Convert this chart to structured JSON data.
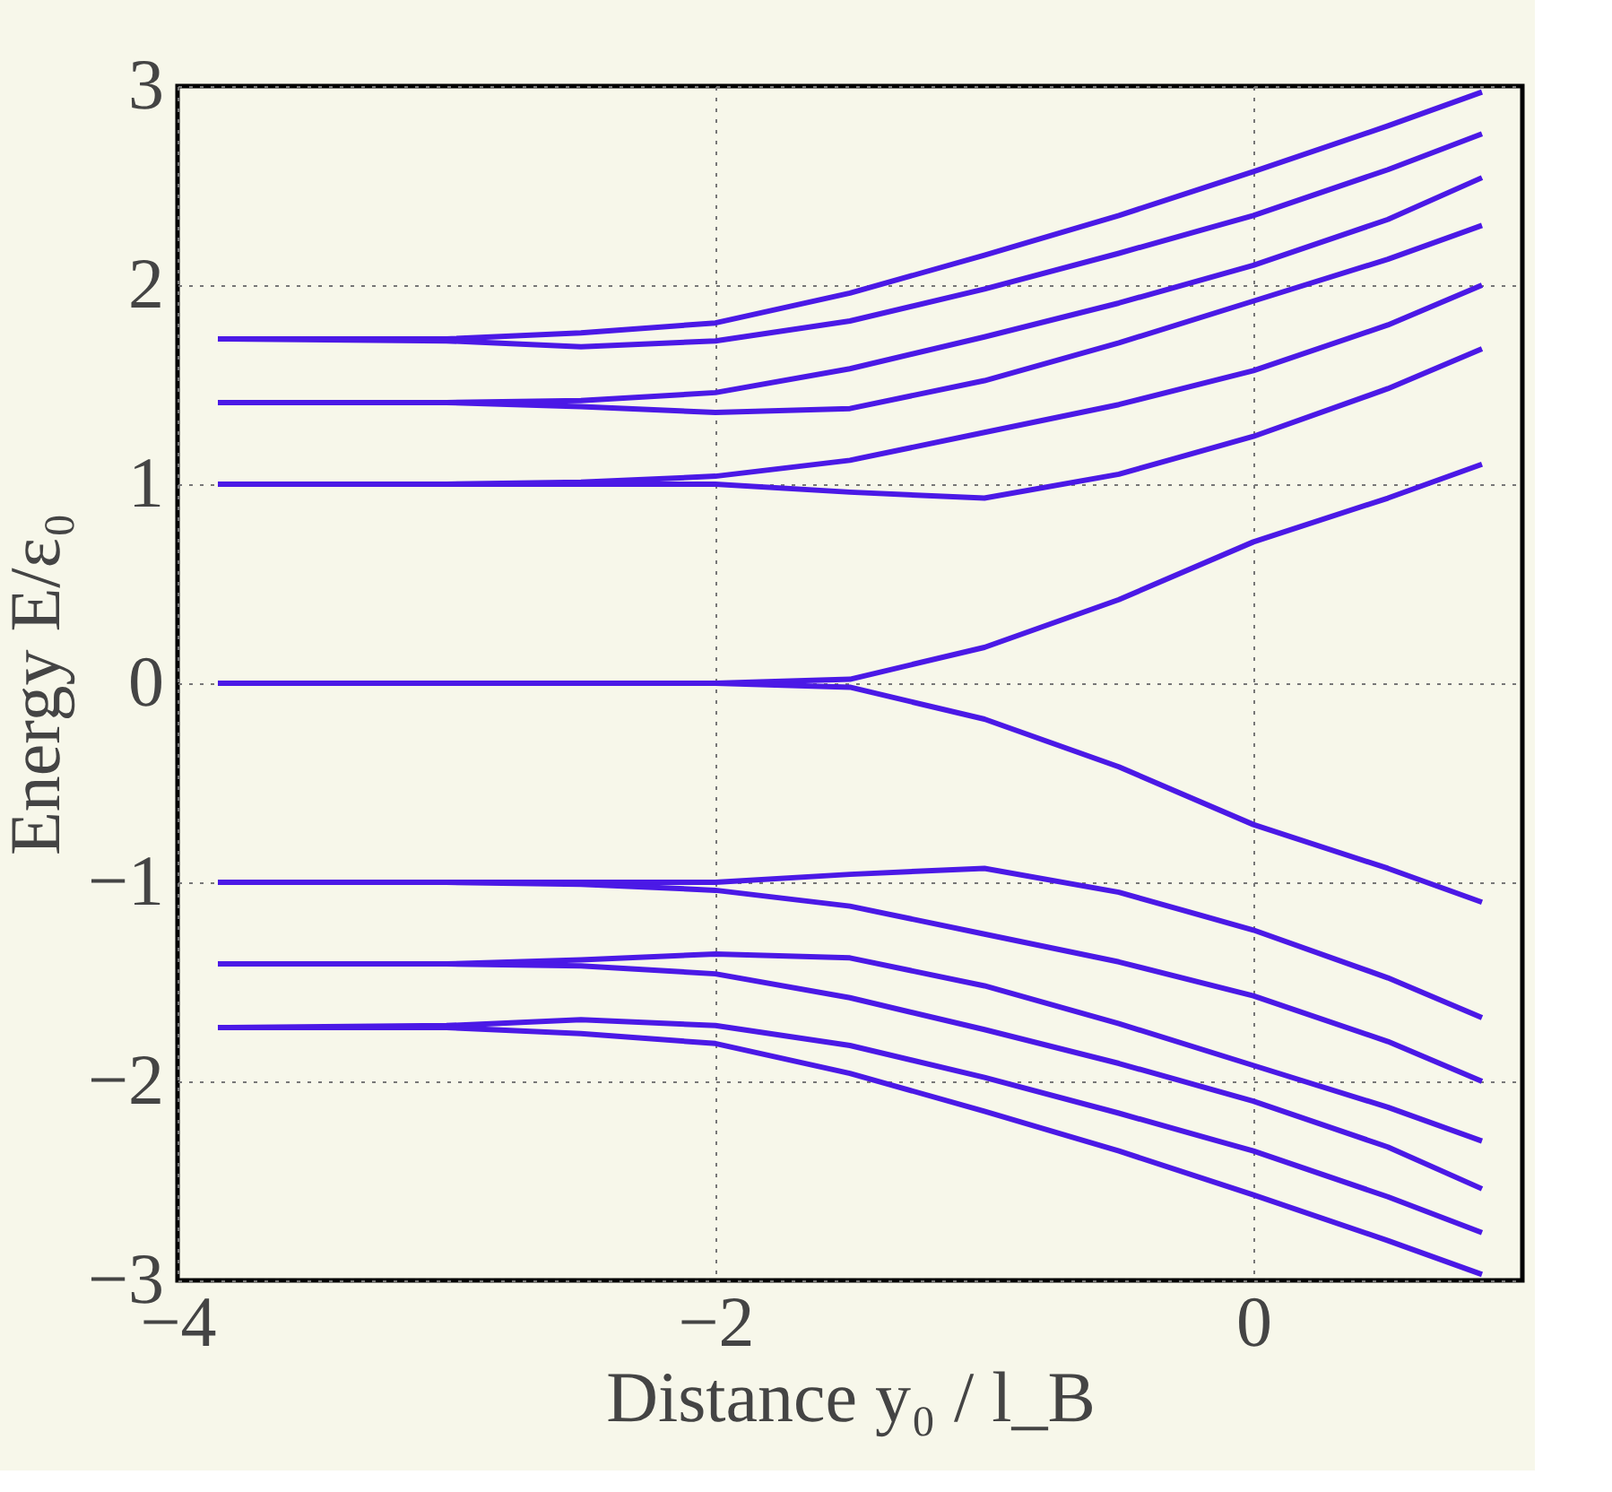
{
  "chart_data": {
    "type": "line",
    "xlabel": "Distance  y₀ / l_B",
    "ylabel": "Energy  E/ε₀",
    "xlim": [
      -4,
      1
    ],
    "ylim": [
      -3,
      3
    ],
    "xticks": [
      -4,
      -2,
      0
    ],
    "yticks": [
      -3,
      -2,
      -1,
      0,
      1,
      2,
      3
    ],
    "grid": true,
    "line_style": "solid",
    "marker": "none",
    "x": [
      -3.85,
      -3.0,
      -2.5,
      -2.0,
      -1.5,
      -1.0,
      -0.5,
      0,
      0.5,
      0.85
    ],
    "series": [
      {
        "color": "#4b19e6",
        "values": [
          1.73,
          1.73,
          1.76,
          1.81,
          1.96,
          2.15,
          2.35,
          2.57,
          2.8,
          2.97
        ]
      },
      {
        "color": "#4b19e6",
        "values": [
          1.73,
          1.72,
          1.69,
          1.72,
          1.82,
          1.98,
          2.16,
          2.35,
          2.58,
          2.76
        ]
      },
      {
        "color": "#4b19e6",
        "values": [
          1.41,
          1.41,
          1.42,
          1.46,
          1.58,
          1.74,
          1.91,
          2.1,
          2.33,
          2.54
        ]
      },
      {
        "color": "#4b19e6",
        "values": [
          1.41,
          1.41,
          1.39,
          1.36,
          1.38,
          1.52,
          1.71,
          1.92,
          2.13,
          2.3
        ]
      },
      {
        "color": "#4b19e6",
        "values": [
          1.0,
          1.0,
          1.01,
          1.04,
          1.12,
          1.26,
          1.4,
          1.57,
          1.8,
          2.0
        ]
      },
      {
        "color": "#4b19e6",
        "values": [
          1.0,
          1.0,
          1.0,
          1.0,
          0.96,
          0.93,
          1.05,
          1.24,
          1.48,
          1.68
        ]
      },
      {
        "color": "#4b19e6",
        "values": [
          0,
          0,
          0,
          0,
          0.02,
          0.18,
          0.42,
          0.71,
          0.93,
          1.1
        ]
      },
      {
        "color": "#4b19e6",
        "values": [
          0,
          0,
          0,
          0,
          -0.02,
          -0.18,
          -0.42,
          -0.71,
          -0.93,
          -1.1
        ]
      },
      {
        "color": "#4b19e6",
        "values": [
          -1.0,
          -1.0,
          -1.0,
          -1.0,
          -0.96,
          -0.93,
          -1.05,
          -1.24,
          -1.48,
          -1.68
        ]
      },
      {
        "color": "#4b19e6",
        "values": [
          -1.0,
          -1.0,
          -1.01,
          -1.04,
          -1.12,
          -1.26,
          -1.4,
          -1.57,
          -1.8,
          -2.0
        ]
      },
      {
        "color": "#4b19e6",
        "values": [
          -1.41,
          -1.41,
          -1.39,
          -1.36,
          -1.38,
          -1.52,
          -1.71,
          -1.92,
          -2.13,
          -2.3
        ]
      },
      {
        "color": "#4b19e6",
        "values": [
          -1.41,
          -1.41,
          -1.42,
          -1.46,
          -1.58,
          -1.74,
          -1.91,
          -2.1,
          -2.33,
          -2.54
        ]
      },
      {
        "color": "#4b19e6",
        "values": [
          -1.73,
          -1.72,
          -1.69,
          -1.72,
          -1.82,
          -1.98,
          -2.16,
          -2.35,
          -2.58,
          -2.76
        ]
      },
      {
        "color": "#4b19e6",
        "values": [
          -1.73,
          -1.73,
          -1.76,
          -1.81,
          -1.96,
          -2.15,
          -2.35,
          -2.57,
          -2.8,
          -2.97
        ]
      }
    ]
  }
}
